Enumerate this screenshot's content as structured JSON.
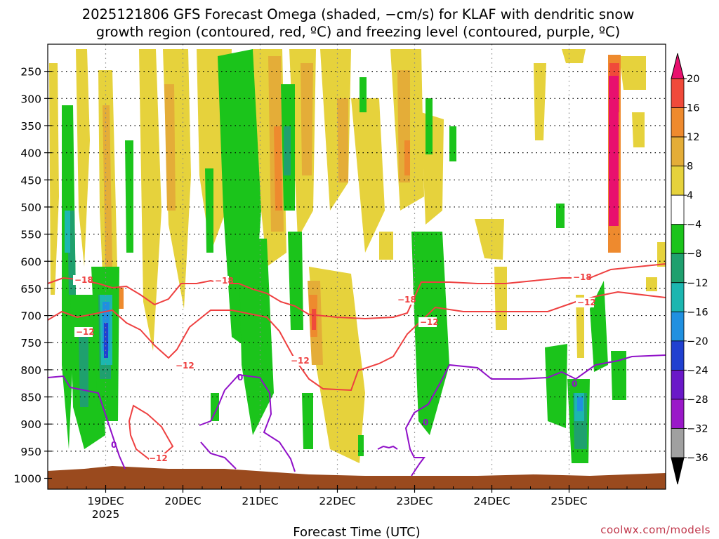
{
  "chart_data": {
    "type": "heatmap",
    "title_lines": [
      "2025121806 GFS Forecast Omega (shaded, −cm/s) for KLAF with dendritic snow",
      "growth region (contoured, red, ºC) and freezing level (contoured, purple, ºC)"
    ],
    "xlabel": "Forecast Time (UTC)",
    "ylabel": "",
    "x_ticks": [
      {
        "label": "19DEC",
        "sub": "2025",
        "t": 0.0
      },
      {
        "label": "20DEC",
        "sub": "",
        "t": 24.0
      },
      {
        "label": "21DEC",
        "sub": "",
        "t": 48.0
      },
      {
        "label": "22DEC",
        "sub": "",
        "t": 72.0
      },
      {
        "label": "23DEC",
        "sub": "",
        "t": 96.0
      },
      {
        "label": "24DEC",
        "sub": "",
        "t": 120.0
      },
      {
        "label": "25DEC",
        "sub": "",
        "t": 144.0
      }
    ],
    "xlim_hours_from_19dec00z": [
      -18,
      174
    ],
    "y_ticks": [
      250,
      300,
      350,
      400,
      450,
      500,
      550,
      600,
      650,
      700,
      750,
      800,
      850,
      900,
      950,
      1000
    ],
    "ylim_hpa": [
      200,
      1020
    ],
    "grid": true,
    "colorbar": {
      "labels": [
        "20",
        "16",
        "12",
        "8",
        "4",
        "−4",
        "−8",
        "−12",
        "−16",
        "−20",
        "−24",
        "−28",
        "−32",
        "−36"
      ],
      "levels": [
        20,
        16,
        12,
        8,
        4,
        -4,
        -8,
        -12,
        -16,
        -20,
        -24,
        -28,
        -32,
        -36
      ],
      "colors": [
        "#e8106e",
        "#f04a3a",
        "#ee8a2e",
        "#e4ad38",
        "#e6d23c",
        "#ffffff",
        "#1bc41b",
        "#1fa06e",
        "#1cb6b0",
        "#2090e0",
        "#2040d0",
        "#6a18c8",
        "#9a18c8",
        "#a0a0a0",
        "#000000"
      ],
      "top_arrow_color": "#e8106e",
      "bottom_arrow_color": "#000000"
    },
    "series": [
      {
        "name": "dendritic growth −18°C",
        "color": "#ee4040",
        "labels": [
          "−18",
          "−18",
          "−18",
          "−18"
        ]
      },
      {
        "name": "dendritic growth −12°C",
        "color": "#ee4040",
        "labels": [
          "−12",
          "−12",
          "−12",
          "−12",
          "−12",
          "−12"
        ]
      },
      {
        "name": "freezing level 0°C",
        "color": "#9010c8",
        "labels": [
          "0",
          "0",
          "0",
          "0"
        ]
      }
    ],
    "ground_color": "#9a4a1e"
  },
  "credit": "coolwx.com/models"
}
